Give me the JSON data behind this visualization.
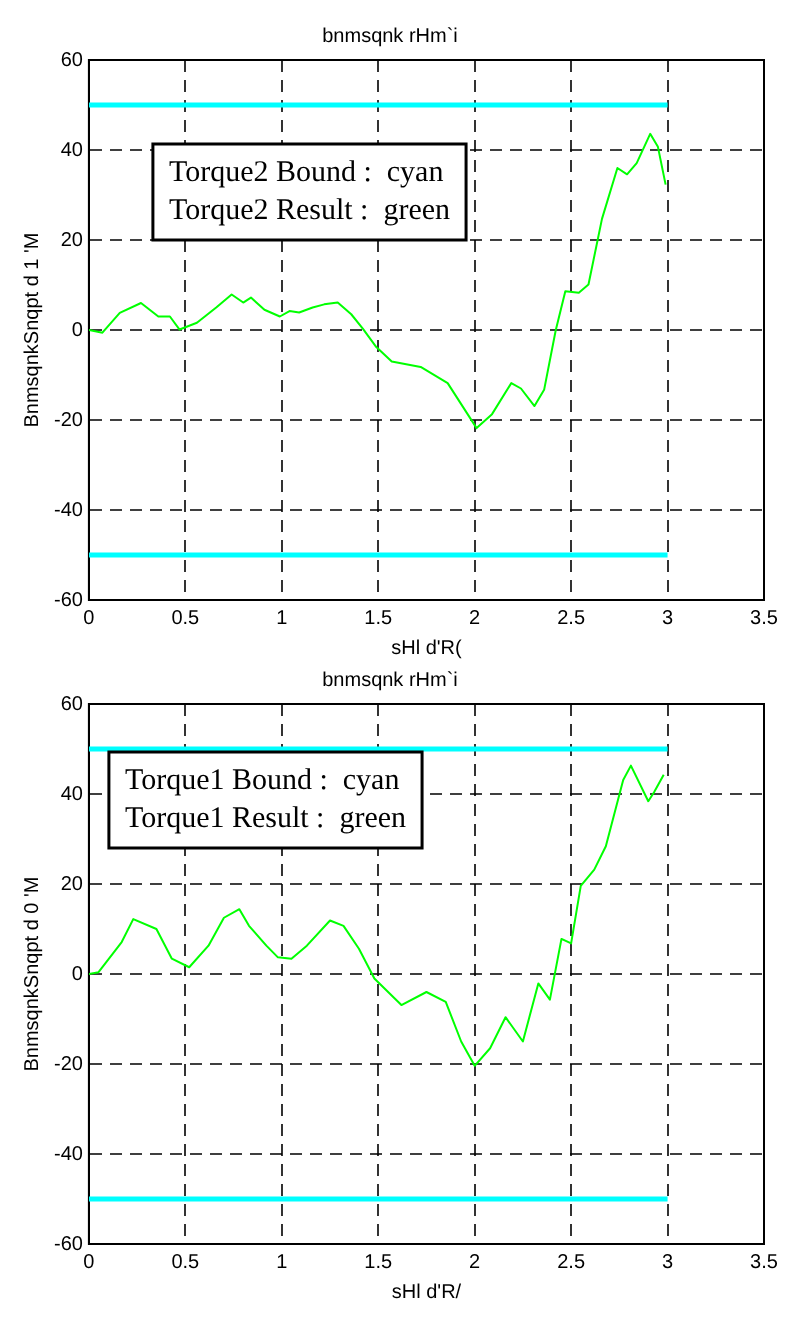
{
  "chart_data": [
    {
      "type": "line",
      "title": "bnmsqnk rHm`i",
      "xlabel": "sHl d'R(",
      "ylabel": "BnmsqnkSnqpt d 1 'M",
      "annotations": [
        "Torque2 Bound :  cyan",
        "Torque2 Result :  green"
      ],
      "xlim": [
        0,
        3.5
      ],
      "xticks": [
        0,
        0.5,
        1,
        1.5,
        2,
        2.5,
        3,
        3.5
      ],
      "ylim": [
        -60,
        60
      ],
      "yticks": [
        60,
        40,
        20,
        0,
        -20,
        -40,
        -60
      ],
      "grid": true,
      "legend": false,
      "marker": "none",
      "line_style": "solid",
      "series": [
        {
          "color": "#00ff00",
          "x": [
            0,
            0.07,
            0.16,
            0.27,
            0.36,
            0.42,
            0.47,
            0.56,
            0.66,
            0.74,
            0.8,
            0.84,
            0.91,
            0.99,
            1.04,
            1.09,
            1.16,
            1.22,
            1.29,
            1.36,
            1.42,
            1.49,
            1.57,
            1.72,
            1.86,
            2.01,
            2.09,
            2.19,
            2.24,
            2.31,
            2.36,
            2.42,
            2.47,
            2.54,
            2.59,
            2.66,
            2.74,
            2.79,
            2.84,
            2.91,
            2.95,
            2.99
          ],
          "values": [
            0,
            -0.6,
            3.8,
            6,
            3,
            3,
            0.1,
            1.6,
            5,
            7.9,
            6.1,
            7.2,
            4.5,
            3,
            4.2,
            3.9,
            5,
            5.7,
            6.1,
            3.5,
            0.3,
            -3.8,
            -7,
            -8.2,
            -11.8,
            -21.8,
            -18.7,
            -11.8,
            -13,
            -16.9,
            -13.3,
            -0.1,
            8.6,
            8.3,
            10.1,
            24.7,
            36,
            34.6,
            37.1,
            43.6,
            40.7,
            32.3
          ]
        },
        {
          "color": "#00ffff",
          "x": [
            0,
            3
          ],
          "values": [
            50,
            50
          ]
        },
        {
          "color": "#00ffff",
          "x": [
            0,
            3
          ],
          "values": [
            -50,
            -50
          ]
        }
      ]
    },
    {
      "type": "line",
      "title": "bnmsqnk rHm`i",
      "xlabel": "sHl d'R/",
      "ylabel": "BnmsqnkSnqpt d 0 'M",
      "annotations": [
        "Torque1 Bound :  cyan",
        "Torque1 Result :  green"
      ],
      "xlim": [
        0,
        3.5
      ],
      "xticks": [
        0,
        0.5,
        1,
        1.5,
        2,
        2.5,
        3,
        3.5
      ],
      "ylim": [
        -60,
        60
      ],
      "yticks": [
        60,
        40,
        20,
        0,
        -20,
        -40,
        -60
      ],
      "grid": true,
      "legend": false,
      "marker": "none",
      "line_style": "solid",
      "series": [
        {
          "color": "#00ff00",
          "x": [
            0,
            0.05,
            0.17,
            0.23,
            0.35,
            0.43,
            0.52,
            0.62,
            0.7,
            0.78,
            0.83,
            0.92,
            0.98,
            1.05,
            1.13,
            1.25,
            1.32,
            1.4,
            1.48,
            1.62,
            1.75,
            1.85,
            1.93,
            2,
            2.08,
            2.16,
            2.25,
            2.33,
            2.39,
            2.45,
            2.5,
            2.55,
            2.62,
            2.68,
            2.77,
            2.81,
            2.9,
            2.93,
            2.98
          ],
          "values": [
            0,
            0.4,
            7.1,
            12.2,
            10,
            3.4,
            1.5,
            6.3,
            12.5,
            14.4,
            10.7,
            6.3,
            3.7,
            3.4,
            6.3,
            11.9,
            10.7,
            5.6,
            -1,
            -6.9,
            -4,
            -6.2,
            -15,
            -20.4,
            -16.5,
            -9.6,
            -15,
            -2.1,
            -5.7,
            7.8,
            6.8,
            19.6,
            23.2,
            28.4,
            43.1,
            46.3,
            38.4,
            40.4,
            44.3
          ]
        },
        {
          "color": "#00ffff",
          "x": [
            0,
            3
          ],
          "values": [
            50,
            50
          ]
        },
        {
          "color": "#00ffff",
          "x": [
            0,
            3
          ],
          "values": [
            -50,
            -50
          ]
        }
      ]
    }
  ]
}
